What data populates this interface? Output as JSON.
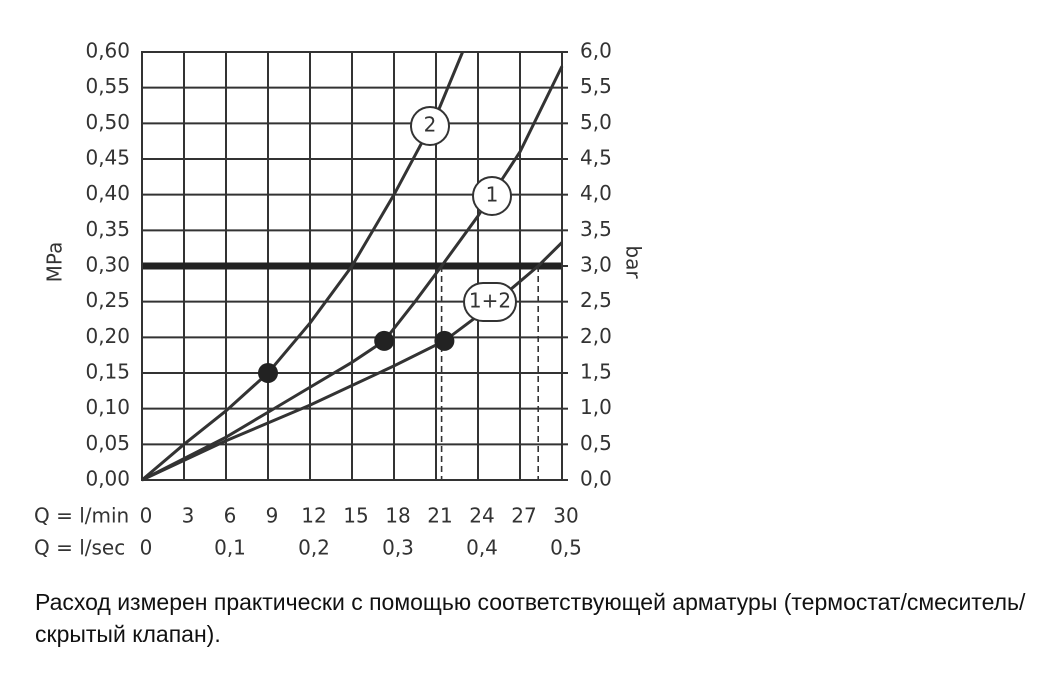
{
  "chart_data": {
    "type": "line",
    "y_label": "MPa",
    "y2_label": "bar",
    "x_label": "Q = l/min",
    "x2_label": "Q = l/sec",
    "xlim": [
      0,
      30
    ],
    "xticks": [
      0,
      3,
      6,
      9,
      12,
      15,
      18,
      21,
      24,
      27,
      30
    ],
    "x2lim": [
      0,
      0.5
    ],
    "x2ticks": [
      0,
      {
        "value": 0.1,
        "label": "0,1"
      },
      {
        "value": 0.2,
        "label": "0,2"
      },
      {
        "value": 0.3,
        "label": "0,3"
      },
      {
        "value": 0.4,
        "label": "0,4"
      },
      {
        "value": 0.5,
        "label": "0,5"
      }
    ],
    "ylim": [
      0,
      0.6
    ],
    "yticks": [
      {
        "value": 0,
        "label": "0,00"
      },
      {
        "value": 0.05,
        "label": "0,05"
      },
      {
        "value": 0.1,
        "label": "0,10"
      },
      {
        "value": 0.15,
        "label": "0,15"
      },
      {
        "value": 0.2,
        "label": "0,20"
      },
      {
        "value": 0.25,
        "label": "0,25"
      },
      {
        "value": 0.3,
        "label": "0,30"
      },
      {
        "value": 0.35,
        "label": "0,35"
      },
      {
        "value": 0.4,
        "label": "0,40"
      },
      {
        "value": 0.45,
        "label": "0,45"
      },
      {
        "value": 0.5,
        "label": "0,50"
      },
      {
        "value": 0.55,
        "label": "0,55"
      },
      {
        "value": 0.6,
        "label": "0,60"
      }
    ],
    "y2lim": [
      0,
      6
    ],
    "y2ticks": [
      {
        "value": 0,
        "label": "0,0"
      },
      {
        "value": 0.5,
        "label": "0,5"
      },
      {
        "value": 1,
        "label": "1,0"
      },
      {
        "value": 1.5,
        "label": "1,5"
      },
      {
        "value": 2,
        "label": "2,0"
      },
      {
        "value": 2.5,
        "label": "2,5"
      },
      {
        "value": 3,
        "label": "3,0"
      },
      {
        "value": 3.5,
        "label": "3,5"
      },
      {
        "value": 4,
        "label": "4,0"
      },
      {
        "value": 4.5,
        "label": "4,5"
      },
      {
        "value": 5,
        "label": "5,0"
      },
      {
        "value": 5.5,
        "label": "5,5"
      },
      {
        "value": 6,
        "label": "6,0"
      }
    ],
    "grid": true,
    "color": "#333333",
    "threshold": 0.3,
    "series": [
      {
        "name": "2",
        "x": [
          0,
          3,
          6,
          9,
          12,
          15,
          18,
          21,
          22.9
        ],
        "values": [
          0,
          0.05,
          0.097,
          0.15,
          0.22,
          0.3,
          0.4,
          0.51,
          0.6
        ],
        "marker": {
          "x": 9,
          "y": 0.15
        },
        "x_at_threshold": 15
      },
      {
        "name": "1",
        "x": [
          0,
          3,
          6,
          9,
          12,
          15,
          17.3,
          19.5,
          21.4,
          24,
          27,
          30
        ],
        "values": [
          0,
          0.03,
          0.06,
          0.095,
          0.13,
          0.165,
          0.195,
          0.25,
          0.3,
          0.37,
          0.46,
          0.58
        ],
        "marker": {
          "x": 17.3,
          "y": 0.195
        },
        "x_at_threshold": 21.4
      },
      {
        "name": "1+2",
        "x": [
          0,
          6,
          12,
          18,
          21.6,
          25,
          28.3,
          30
        ],
        "values": [
          0,
          0.055,
          0.105,
          0.16,
          0.195,
          0.245,
          0.3,
          0.333
        ],
        "marker": {
          "x": 21.6,
          "y": 0.195
        },
        "x_at_threshold": 28.3
      }
    ]
  },
  "caption": "Расход измерен практически с помощью соответствующей арматуры (термостат/смеситель/скрытый клапан)."
}
